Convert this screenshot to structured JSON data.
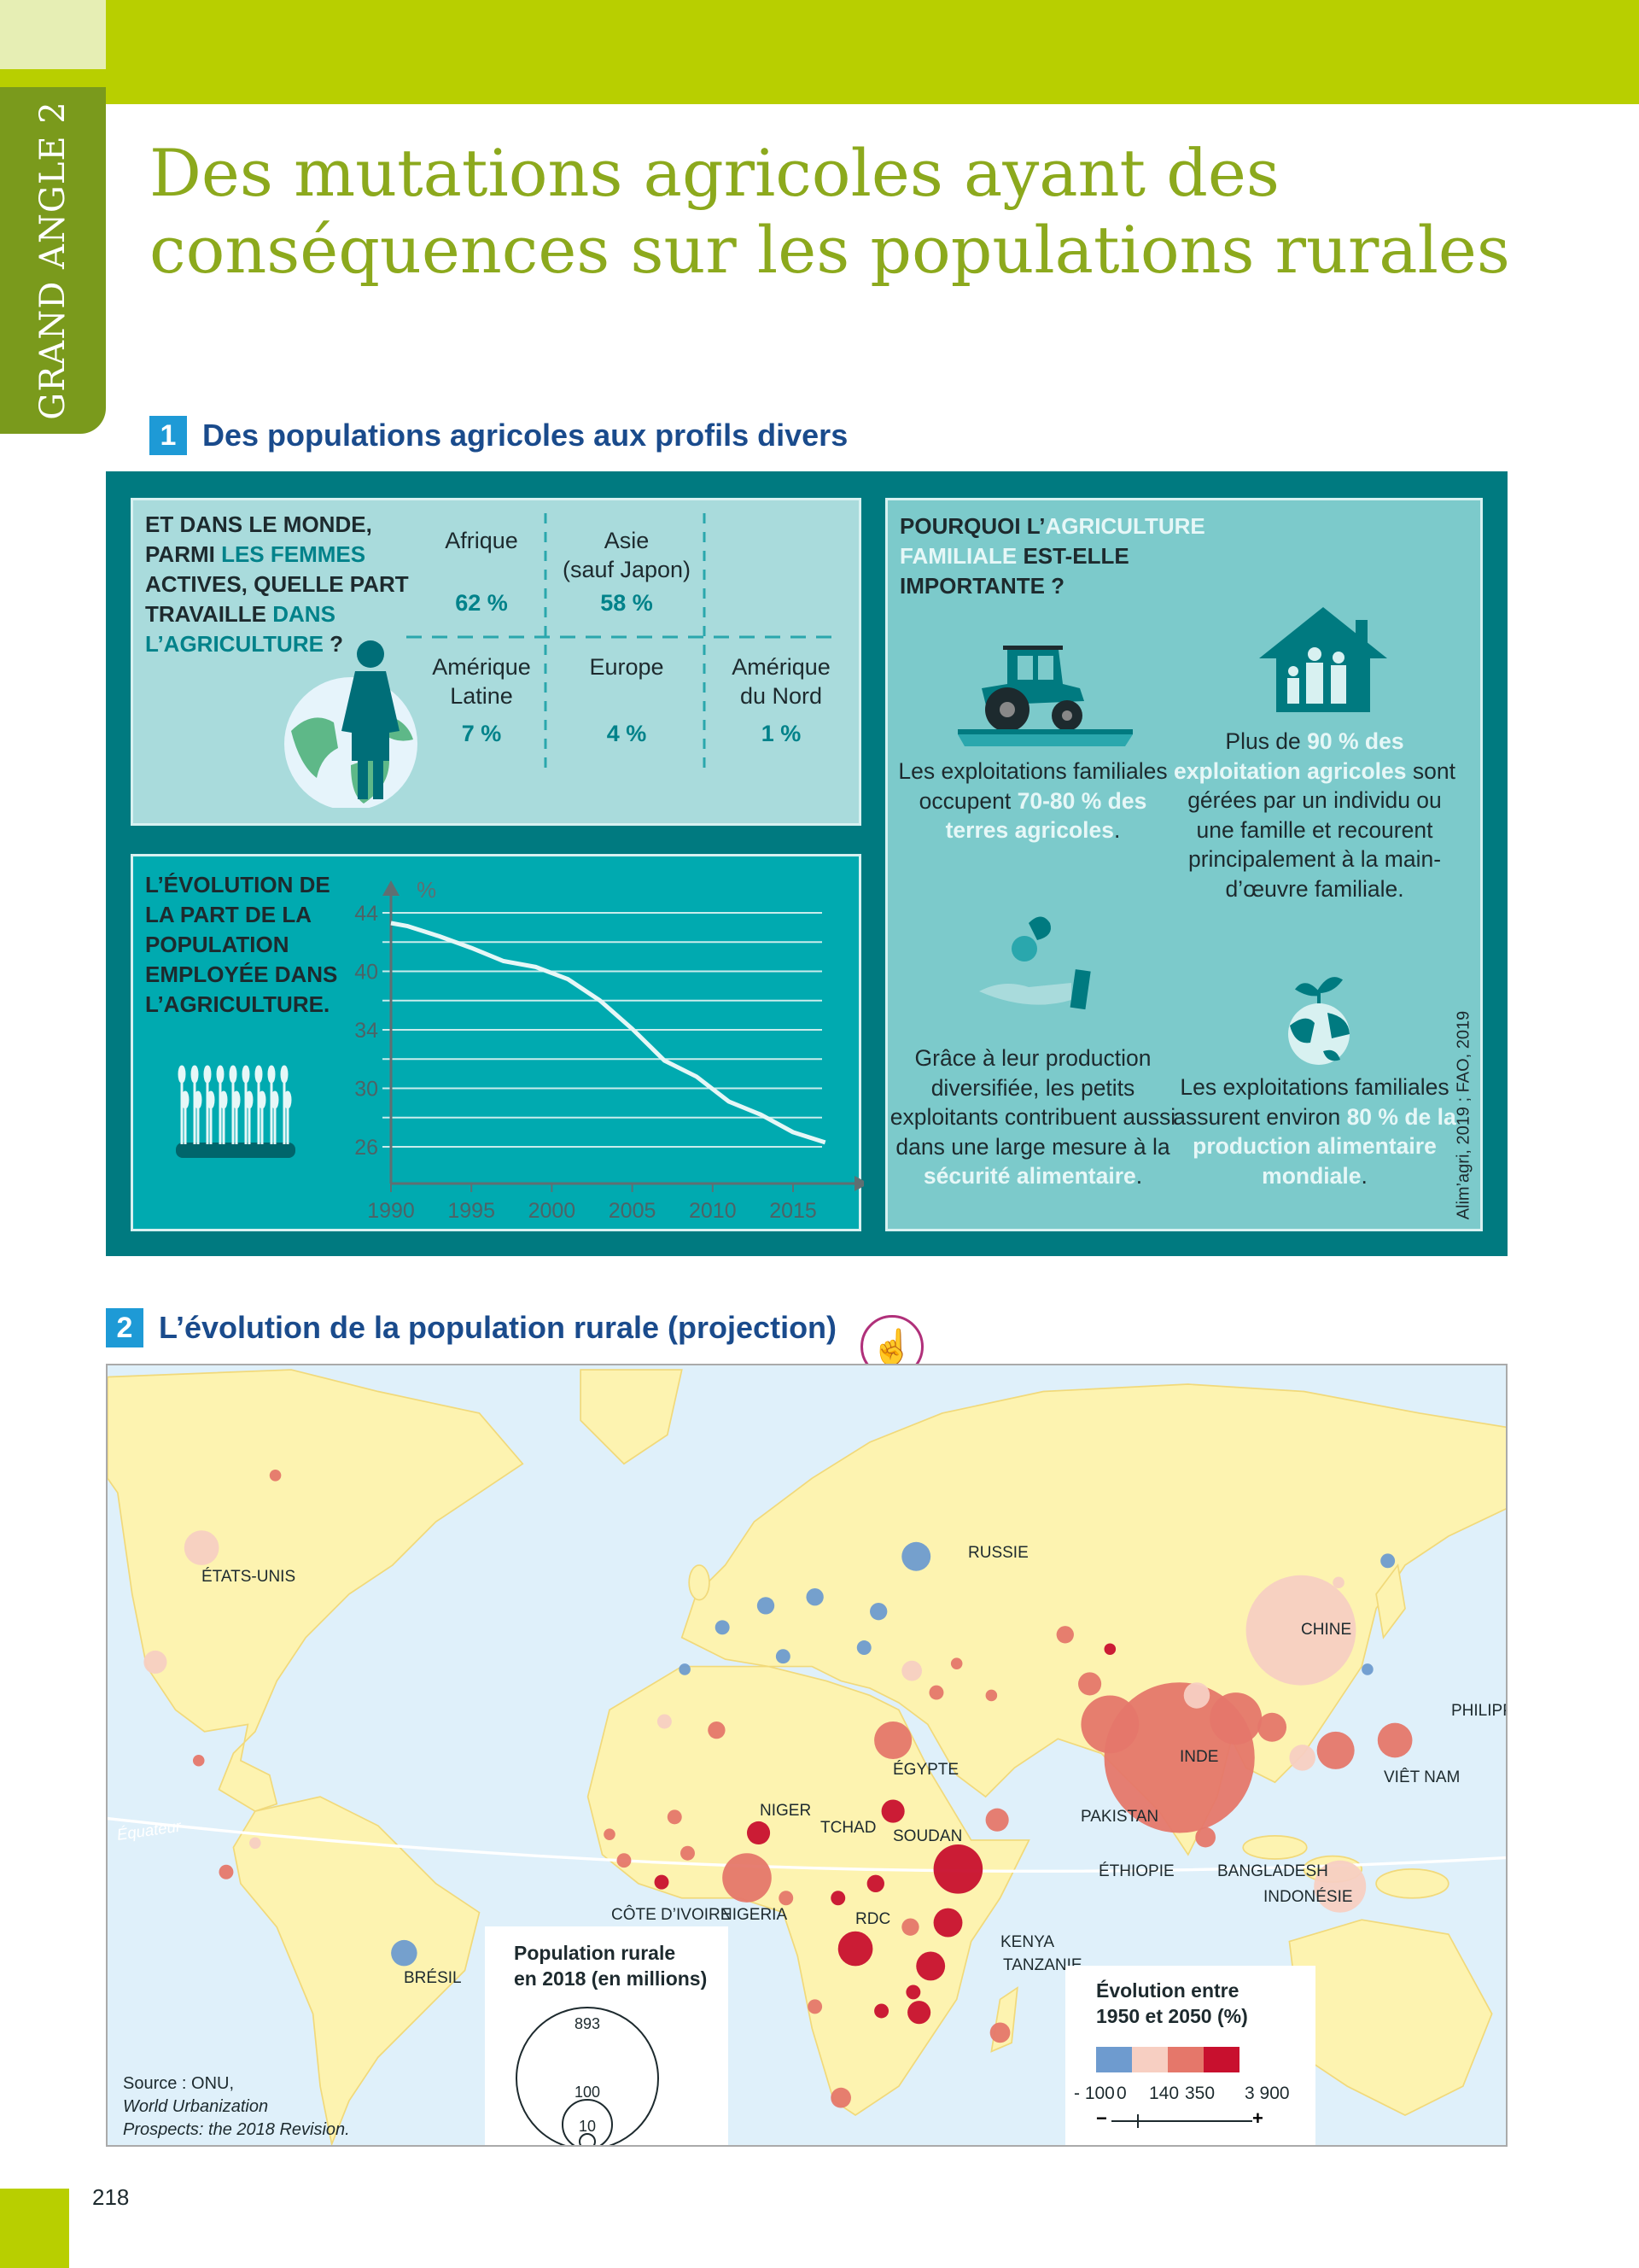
{
  "header": {
    "tab_label": "GRAND ANGLE 2",
    "title_line1": "Des mutations agricoles ayant des",
    "title_line2": "conséquences sur les populations rurales"
  },
  "section1": {
    "number": "1",
    "title": "Des populations agricoles aux profils divers",
    "women": {
      "question": [
        {
          "t": "ET DANS LE MONDE, ",
          "h": false
        },
        {
          "t": "PARMI ",
          "h": false
        },
        {
          "t": "LES FEMMES",
          "h": true
        },
        {
          "t": " ACTIVES, QUELLE PART TRAVAILLE ",
          "h": false
        },
        {
          "t": "DANS L’AGRICULTURE",
          "h": true
        },
        {
          "t": " ?",
          "h": false
        }
      ],
      "regions": [
        {
          "name": "Afrique",
          "value": "62 %"
        },
        {
          "name": "Asie\n(sauf Japon)",
          "value": "58 %"
        },
        {
          "name": "Amérique\nLatine",
          "value": "7 %"
        },
        {
          "name": "Europe",
          "value": "4 %"
        },
        {
          "name": "Amérique\ndu Nord",
          "value": "1 %"
        }
      ]
    },
    "chart_title": "L’ÉVOLUTION DE LA PART DE LA POPULATION EMPLOYÉE DANS L’AGRICULTURE.",
    "chart_data": {
      "type": "line",
      "title": "L’ÉVOLUTION DE LA PART DE LA POPULATION EMPLOYÉE DANS L’AGRICULTURE.",
      "ylabel": "%",
      "xlabel": "",
      "x_ticks": [
        "1990",
        "1995",
        "2000",
        "2005",
        "2010",
        "2015"
      ],
      "y_ticks": [
        "44",
        "40",
        "34",
        "30",
        "26"
      ],
      "x": [
        1990,
        1991,
        1993,
        1995,
        1997,
        1999,
        2001,
        2003,
        2005,
        2007,
        2009,
        2011,
        2013,
        2015,
        2017
      ],
      "values": [
        43.3,
        43.1,
        42.4,
        41.6,
        40.7,
        40.3,
        39.2,
        37.0,
        34.1,
        31.9,
        30.8,
        29.1,
        28.2,
        27.0,
        26.3
      ],
      "xlim": [
        1990,
        2017
      ],
      "ylim": [
        26,
        44
      ],
      "grid": true,
      "line_color": "#e6f7f7"
    },
    "family": {
      "title": [
        {
          "t": "POURQUOI L’",
          "h": false
        },
        {
          "t": "AGRICULTURE FAMILIALE",
          "h": true
        },
        {
          "t": " EST-ELLE IMPORTANTE ?",
          "h": false
        }
      ],
      "items": [
        {
          "icon": "tractor-icon",
          "parts": [
            {
              "t": "Les exploitations familiales occupent ",
              "h": false
            },
            {
              "t": "70-80 % des terres agricoles",
              "h": true
            },
            {
              "t": ".",
              "h": false
            }
          ]
        },
        {
          "icon": "family-house-icon",
          "parts": [
            {
              "t": "Plus de ",
              "h": false
            },
            {
              "t": "90 % des exploitation agricoles",
              "h": true
            },
            {
              "t": " sont gérées par un individu ou une famille et recourent principalement à la main-d’œuvre familiale.",
              "h": false
            }
          ]
        },
        {
          "icon": "hand-radish-icon",
          "parts": [
            {
              "t": "Grâce à leur production diversifiée, les petits exploitants contribuent aussi dans une large mesure à la ",
              "h": false
            },
            {
              "t": "sécurité alimentaire",
              "h": true
            },
            {
              "t": ".",
              "h": false
            }
          ]
        },
        {
          "icon": "globe-sprout-icon",
          "parts": [
            {
              "t": "Les exploitations familiales assurent environ ",
              "h": false
            },
            {
              "t": "80 % de la production alimentaire mondiale",
              "h": true
            },
            {
              "t": ".",
              "h": false
            }
          ]
        }
      ],
      "source": "Alim’agri, 2019 ; FAO, 2019"
    }
  },
  "section2": {
    "number": "2",
    "title": "L’évolution de la population rurale (projection)",
    "equator": "Équateur",
    "countries": [
      "ÉTATS-UNIS",
      "RUSSIE",
      "CHINE",
      "PHILIPPINES",
      "ÉGYPTE",
      "VIÊT NAM",
      "INDE",
      "NIGER",
      "TCHAD",
      "SOUDAN",
      "PAKISTAN",
      "ÉTHIOPIE",
      "BANGLADESH",
      "INDONÉSIE",
      "CÔTE D’IVOIRE",
      "NIGERIA",
      "RDC",
      "KENYA",
      "TANZANIE",
      "BRÉSIL"
    ],
    "source": [
      "Source : ONU,",
      "World Urbanization",
      "Prospects: the 2018 Revision."
    ],
    "legend_size": {
      "title_line1": "Population rurale",
      "title_line2": "en 2018 (en millions)",
      "values": [
        "893",
        "100",
        "10"
      ]
    },
    "legend_color": {
      "title_line1": "Évolution entre",
      "title_line2": "1950 et 2050 (%)",
      "breaks": [
        "- 100",
        "0",
        "140",
        "350",
        "3 900"
      ],
      "colors": [
        "#6e9bcf",
        "#f7cfc2",
        "#e5776a",
        "#c8102e"
      ],
      "minus": "−",
      "plus": "+"
    }
  },
  "page_number": "218",
  "colors": {
    "accent_green": "#b8cf00",
    "title_green": "#8ca91d",
    "teal_dark": "#007a80",
    "teal": "#00aab0",
    "heading_blue": "#1a4b8c"
  }
}
